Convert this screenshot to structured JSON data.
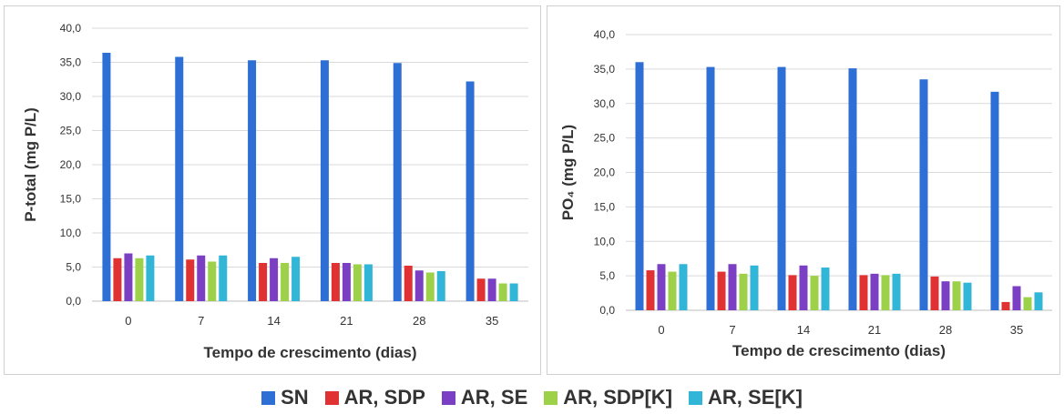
{
  "chart_data": [
    {
      "type": "bar",
      "ylabel": "P-total (mg P/L)",
      "xlabel": "Tempo de crescimento (dias)",
      "categories": [
        "0",
        "7",
        "14",
        "21",
        "28",
        "35"
      ],
      "yticks": [
        "0,0",
        "5,0",
        "10,0",
        "15,0",
        "20,0",
        "25,0",
        "30,0",
        "35,0",
        "40,0"
      ],
      "ylim": [
        0,
        40
      ],
      "grid": true,
      "series": [
        {
          "name": "SN",
          "values": [
            36.4,
            35.8,
            35.3,
            35.3,
            34.9,
            32.2
          ]
        },
        {
          "name": "AR, SDP",
          "values": [
            6.3,
            6.1,
            5.6,
            5.6,
            5.2,
            3.3
          ]
        },
        {
          "name": "AR, SE",
          "values": [
            7.0,
            6.7,
            6.3,
            5.6,
            4.5,
            3.3
          ]
        },
        {
          "name": "AR, SDP[K]",
          "values": [
            6.3,
            5.8,
            5.6,
            5.4,
            4.2,
            2.6
          ]
        },
        {
          "name": "AR, SE[K]",
          "values": [
            6.7,
            6.7,
            6.5,
            5.4,
            4.4,
            2.6
          ]
        }
      ]
    },
    {
      "type": "bar",
      "ylabel": "PO₄ (mg P/L)",
      "xlabel": "Tempo de crescimento (dias)",
      "categories": [
        "0",
        "7",
        "14",
        "21",
        "28",
        "35"
      ],
      "yticks": [
        "0,0",
        "5,0",
        "10,0",
        "15,0",
        "20,0",
        "25,0",
        "30,0",
        "35,0",
        "40,0"
      ],
      "ylim": [
        0,
        40
      ],
      "grid": true,
      "series": [
        {
          "name": "SN",
          "values": [
            36.0,
            35.3,
            35.3,
            35.1,
            33.5,
            31.7
          ]
        },
        {
          "name": "AR, SDP",
          "values": [
            5.8,
            5.6,
            5.1,
            5.1,
            4.9,
            1.2
          ]
        },
        {
          "name": "AR, SE",
          "values": [
            6.7,
            6.7,
            6.5,
            5.3,
            4.2,
            3.5
          ]
        },
        {
          "name": "AR, SDP[K]",
          "values": [
            5.6,
            5.3,
            5.0,
            5.1,
            4.2,
            1.9
          ]
        },
        {
          "name": "AR, SE[K]",
          "values": [
            6.7,
            6.5,
            6.2,
            5.3,
            4.0,
            2.6
          ]
        }
      ]
    }
  ],
  "series_colors": [
    "#2e6fd6",
    "#e03232",
    "#7b3fc4",
    "#9ed14a",
    "#31b6d8"
  ],
  "legend": {
    "placement": "bottom",
    "items": [
      "SN",
      "AR, SDP",
      "AR, SE",
      "AR, SDP[K]",
      "AR, SE[K]"
    ]
  }
}
